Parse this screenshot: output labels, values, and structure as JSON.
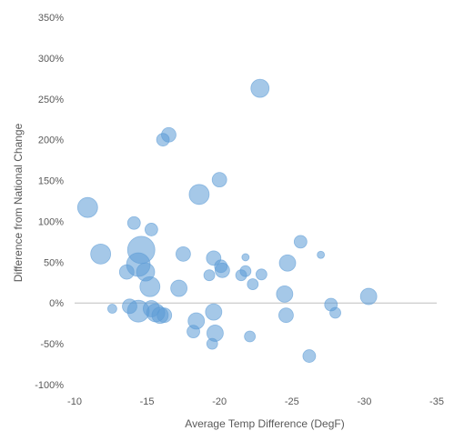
{
  "chart_data": {
    "type": "scatter",
    "title": "",
    "xlabel": "Average Temp Difference (DegF)",
    "ylabel": "Difference from National Change",
    "xlim": [
      -10,
      -35
    ],
    "ylim": [
      -100,
      350
    ],
    "x_ticks": [
      -10,
      -15,
      -20,
      -25,
      -30,
      -35
    ],
    "x_tick_labels": [
      "-10",
      "-15",
      "-20",
      "-25",
      "-30",
      "-35"
    ],
    "y_ticks": [
      -100,
      -50,
      0,
      50,
      100,
      150,
      200,
      250,
      300,
      350
    ],
    "y_tick_labels": [
      "-100%",
      "-50%",
      "0%",
      "50%",
      "100%",
      "150%",
      "200%",
      "250%",
      "300%",
      "350%"
    ],
    "x_axis_reversed": true,
    "grid": false,
    "bubble_color": "#5b9bd5",
    "series": [
      {
        "points": [
          {
            "x": -10.9,
            "y": 117,
            "size": 11
          },
          {
            "x": -11.8,
            "y": 60,
            "size": 11
          },
          {
            "x": -12.6,
            "y": -7,
            "size": 5
          },
          {
            "x": -13.6,
            "y": 38,
            "size": 8
          },
          {
            "x": -13.8,
            "y": -4,
            "size": 8
          },
          {
            "x": -14.1,
            "y": 98,
            "size": 7
          },
          {
            "x": -14.4,
            "y": 47,
            "size": 13
          },
          {
            "x": -14.4,
            "y": -10,
            "size": 12
          },
          {
            "x": -14.6,
            "y": 65,
            "size": 15
          },
          {
            "x": -14.9,
            "y": 38,
            "size": 10
          },
          {
            "x": -15.2,
            "y": 20,
            "size": 11
          },
          {
            "x": -15.3,
            "y": 90,
            "size": 7
          },
          {
            "x": -15.3,
            "y": -7,
            "size": 9
          },
          {
            "x": -15.6,
            "y": -12,
            "size": 10
          },
          {
            "x": -15.9,
            "y": -15,
            "size": 9
          },
          {
            "x": -16.1,
            "y": 200,
            "size": 7
          },
          {
            "x": -16.2,
            "y": -15,
            "size": 8
          },
          {
            "x": -16.5,
            "y": 206,
            "size": 8
          },
          {
            "x": -17.2,
            "y": 18,
            "size": 9
          },
          {
            "x": -17.5,
            "y": 60,
            "size": 8
          },
          {
            "x": -18.2,
            "y": -35,
            "size": 7
          },
          {
            "x": -18.4,
            "y": -22,
            "size": 9
          },
          {
            "x": -18.6,
            "y": 133,
            "size": 11
          },
          {
            "x": -19.3,
            "y": 34,
            "size": 6
          },
          {
            "x": -19.5,
            "y": -50,
            "size": 6
          },
          {
            "x": -19.6,
            "y": -11,
            "size": 9
          },
          {
            "x": -19.6,
            "y": 55,
            "size": 8
          },
          {
            "x": -19.7,
            "y": -37,
            "size": 9
          },
          {
            "x": -20.0,
            "y": 151,
            "size": 8
          },
          {
            "x": -20.1,
            "y": 45,
            "size": 7
          },
          {
            "x": -20.2,
            "y": 40,
            "size": 8
          },
          {
            "x": -21.5,
            "y": 34,
            "size": 6
          },
          {
            "x": -21.8,
            "y": 39,
            "size": 6
          },
          {
            "x": -21.8,
            "y": 56,
            "size": 4
          },
          {
            "x": -22.1,
            "y": -41,
            "size": 6
          },
          {
            "x": -22.3,
            "y": 23,
            "size": 6
          },
          {
            "x": -22.8,
            "y": 263,
            "size": 10
          },
          {
            "x": -22.9,
            "y": 35,
            "size": 6
          },
          {
            "x": -24.5,
            "y": 11,
            "size": 9
          },
          {
            "x": -24.6,
            "y": -15,
            "size": 8
          },
          {
            "x": -24.7,
            "y": 49,
            "size": 9
          },
          {
            "x": -25.6,
            "y": 75,
            "size": 7
          },
          {
            "x": -26.2,
            "y": -65,
            "size": 7
          },
          {
            "x": -27.0,
            "y": 59,
            "size": 4
          },
          {
            "x": -27.7,
            "y": -2,
            "size": 7
          },
          {
            "x": -28.0,
            "y": -12,
            "size": 6
          },
          {
            "x": -30.3,
            "y": 8,
            "size": 9
          }
        ]
      }
    ]
  }
}
